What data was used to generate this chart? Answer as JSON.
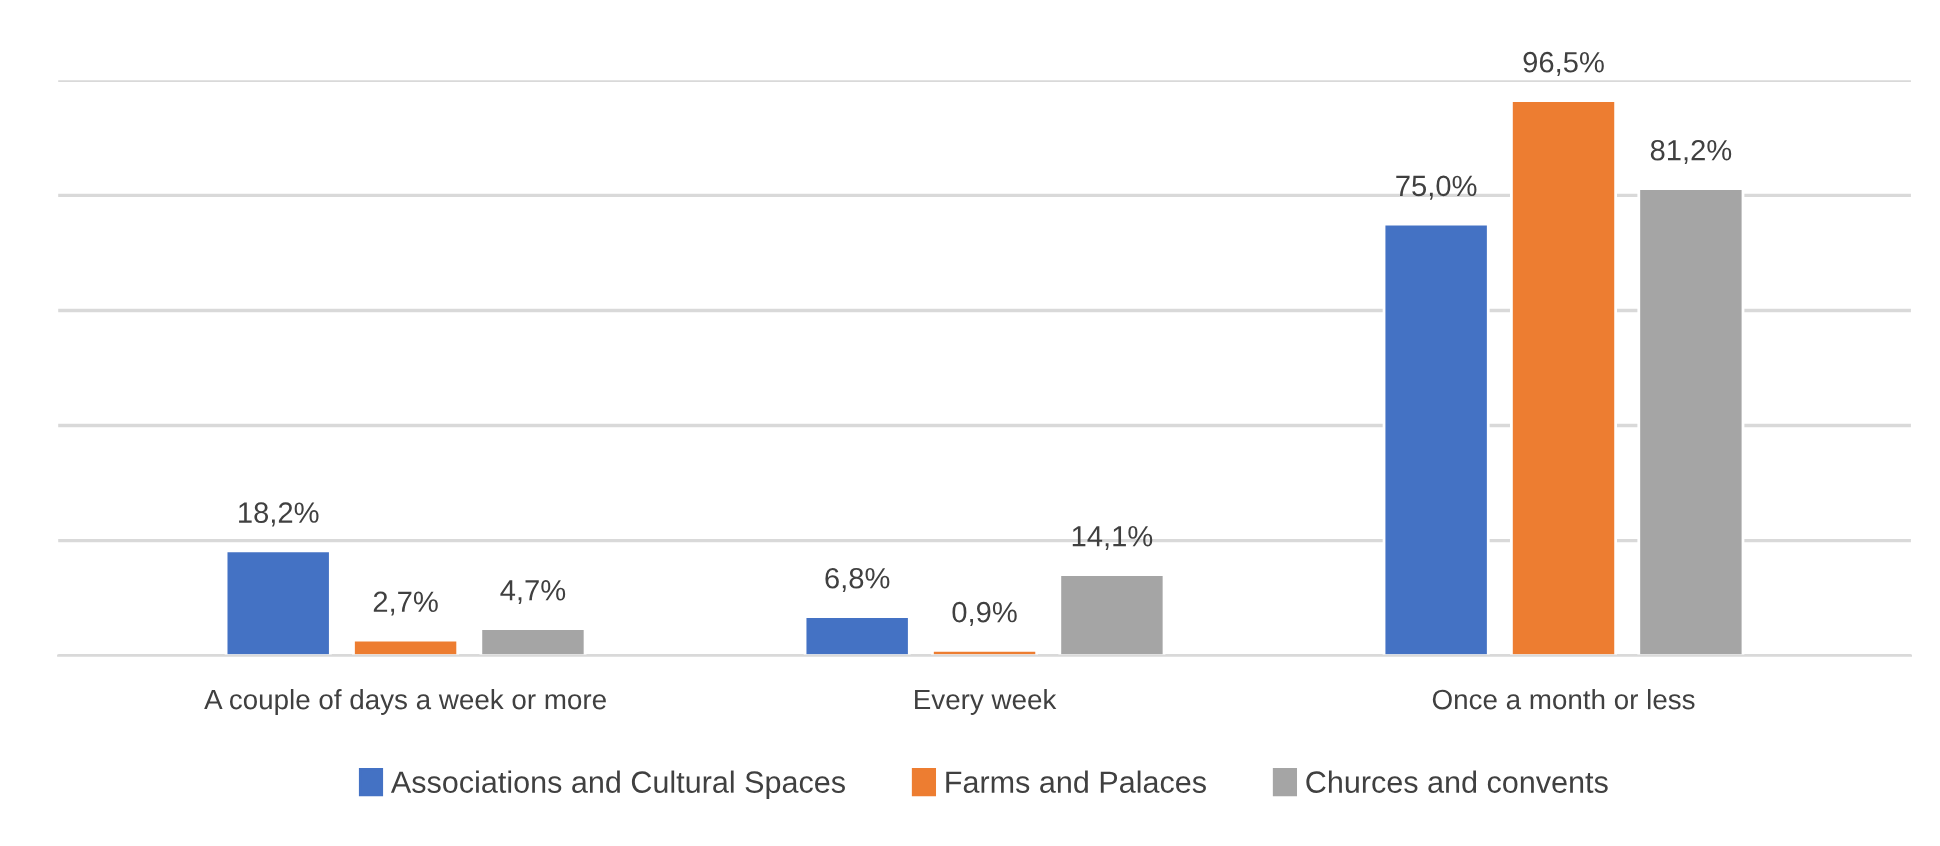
{
  "chart_data": {
    "type": "bar",
    "categories": [
      "A couple of days a week or more",
      "Every week",
      "Once a month or less"
    ],
    "series": [
      {
        "name": "Associations and Cultural Spaces",
        "color": "#4472c4",
        "values": [
          18.2,
          6.8,
          75.0
        ],
        "value_labels": [
          "18,2%",
          "6,8%",
          "75,0%"
        ]
      },
      {
        "name": "Farms and Palaces",
        "color": "#ed7d31",
        "values": [
          2.7,
          0.9,
          96.5
        ],
        "value_labels": [
          "2,7%",
          "0,9%",
          "96,5%"
        ]
      },
      {
        "name": "Churces and convents",
        "color": "#a5a5a5",
        "values": [
          4.7,
          14.1,
          81.2
        ],
        "value_labels": [
          "4,7%",
          "14,1%",
          "81,2%"
        ]
      }
    ],
    "ylim": [
      0,
      100
    ],
    "yticks": [
      {
        "value": 0,
        "label": null
      },
      {
        "value": 20,
        "label": null
      },
      {
        "value": 40,
        "label": null
      },
      {
        "value": 60,
        "label": null
      },
      {
        "value": 80,
        "label": null
      },
      {
        "value": 100,
        "label": null
      }
    ],
    "tick_labels": "x",
    "grid": "y",
    "legend": "bottom"
  }
}
